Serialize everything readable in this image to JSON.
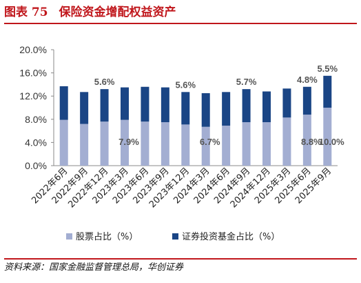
{
  "header": {
    "figure_label": "图表 75",
    "title": "保险资金增配权益资产"
  },
  "footer": {
    "source": "资料来源：国家金融监督管理总局，华创证券"
  },
  "colors": {
    "accent": "#c0161b",
    "stock_series": "#a3aed2",
    "fund_series": "#1a4585"
  },
  "chart_data": {
    "type": "bar",
    "stacked": true,
    "categories": [
      "2022年6月",
      "2022年9月",
      "2022年12月",
      "2023年3月",
      "2023年6月",
      "2023年9月",
      "2023年12月",
      "2024年3月",
      "2024年6月",
      "2024年9月",
      "2024年12月",
      "2025年3月",
      "2025年6月",
      "2025年9月"
    ],
    "series": [
      {
        "name": "股票占比（%）",
        "values": [
          7.9,
          7.2,
          7.6,
          7.9,
          7.6,
          7.5,
          7.1,
          6.7,
          6.9,
          7.5,
          7.5,
          8.3,
          8.8,
          10.0
        ]
      },
      {
        "name": "证券投资基金占比（%）",
        "values": [
          5.8,
          5.5,
          5.6,
          5.6,
          6.0,
          6.0,
          5.6,
          5.8,
          5.8,
          5.7,
          5.3,
          5.0,
          4.8,
          5.5
        ]
      }
    ],
    "data_labels": [
      {
        "category_index": 2,
        "series": 1,
        "text": "5.6%"
      },
      {
        "category_index": 3,
        "series": 0,
        "text": "7.9%"
      },
      {
        "category_index": 6,
        "series": 1,
        "text": "5.6%"
      },
      {
        "category_index": 7,
        "series": 0,
        "text": "6.7%"
      },
      {
        "category_index": 9,
        "series": 1,
        "text": "5.7%"
      },
      {
        "category_index": 12,
        "series": 1,
        "text": "4.8%"
      },
      {
        "category_index": 12,
        "series": 0,
        "text": "8.8%"
      },
      {
        "category_index": 13,
        "series": 1,
        "text": "5.5%"
      },
      {
        "category_index": 13,
        "series": 0,
        "text": "10.0%"
      }
    ],
    "y_ticks": [
      "0.0%",
      "4.0%",
      "8.0%",
      "12.0%",
      "16.0%",
      "20.0%"
    ],
    "ylim": [
      0,
      20
    ],
    "grid": false,
    "legend_position": "bottom"
  }
}
